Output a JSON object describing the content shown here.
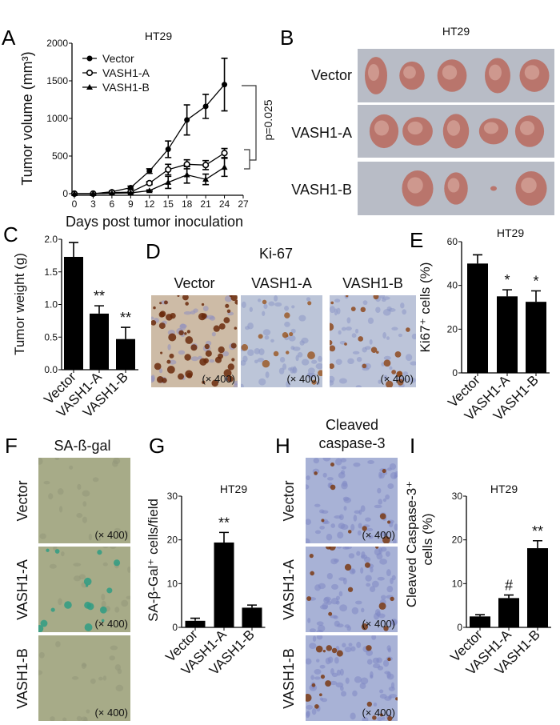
{
  "panel_letters": {
    "A": "A",
    "B": "B",
    "C": "C",
    "D": "D",
    "E": "E",
    "F": "F",
    "G": "G",
    "H": "H",
    "I": "I"
  },
  "panel_B": {
    "title": "HT29",
    "rows": [
      "Vector",
      "VASH1-A",
      "VASH1-B"
    ],
    "tumor_counts": [
      5,
      5,
      4
    ]
  },
  "panel_D": {
    "title": "Ki-67",
    "columns": [
      "Vector",
      "VASH1-A",
      "VASH1-B"
    ],
    "magnification": "(× 400)"
  },
  "panel_F": {
    "title": "SA-ß-gal",
    "rows": [
      "Vector",
      "VASH1-A",
      "VASH1-B"
    ],
    "magnification": "(× 400)"
  },
  "panel_H": {
    "title_line1": "Cleaved",
    "title_line2": "caspase-3",
    "rows": [
      "Vector",
      "VASH1-A",
      "VASH1-B"
    ],
    "magnification": "(× 400)"
  },
  "chart_data": [
    {
      "id": "A",
      "type": "line",
      "title": "HT29",
      "xlabel": "Days post tumor inoculation",
      "ylabel": "Tumor volume (mm³)",
      "xlim": [
        0,
        27
      ],
      "ylim": [
        0,
        2000
      ],
      "xticks": [
        0,
        3,
        6,
        9,
        12,
        15,
        18,
        21,
        24,
        27
      ],
      "yticks": [
        0,
        500,
        1000,
        1500,
        2000
      ],
      "x": [
        0,
        3,
        6,
        9,
        12,
        15,
        18,
        21,
        24
      ],
      "legend_position": "top-left",
      "series": [
        {
          "name": "Vector",
          "marker": "filled-circle",
          "values": [
            0,
            0,
            25,
            80,
            300,
            590,
            980,
            1160,
            1450
          ],
          "errors": [
            0,
            0,
            10,
            20,
            30,
            110,
            200,
            160,
            350
          ]
        },
        {
          "name": "VASH1-A",
          "marker": "open-circle",
          "values": [
            0,
            0,
            15,
            20,
            140,
            320,
            390,
            380,
            540
          ],
          "errors": [
            0,
            0,
            5,
            10,
            20,
            70,
            60,
            60,
            60
          ]
        },
        {
          "name": "VASH1-B",
          "marker": "triangle",
          "values": [
            0,
            0,
            5,
            10,
            40,
            150,
            250,
            190,
            350
          ],
          "errors": [
            0,
            0,
            3,
            5,
            10,
            80,
            110,
            70,
            120
          ]
        }
      ],
      "annotation": "p=0.025"
    },
    {
      "id": "C",
      "type": "bar",
      "title": "",
      "ylabel": "Tumor weight (g)",
      "ylim": [
        0,
        2.0
      ],
      "yticks": [
        "0.0",
        "0.5",
        "1.0",
        "1.5",
        "2.0"
      ],
      "categories": [
        "Vector",
        "VASH1-A",
        "VASH1-B"
      ],
      "values": [
        1.73,
        0.86,
        0.47
      ],
      "errors": [
        0.22,
        0.12,
        0.18
      ],
      "significance": [
        "",
        "**",
        "**"
      ]
    },
    {
      "id": "E",
      "type": "bar",
      "title": "HT29",
      "ylabel": "Ki67⁺ cells (%)",
      "ylim": [
        0,
        60
      ],
      "yticks": [
        "0",
        "20",
        "40",
        "60"
      ],
      "categories": [
        "Vector",
        "VASH1-A",
        "VASH1-B"
      ],
      "values": [
        50,
        35,
        32.5
      ],
      "errors": [
        4,
        3,
        5
      ],
      "significance": [
        "",
        "*",
        "*"
      ]
    },
    {
      "id": "G",
      "type": "bar",
      "title": "HT29",
      "ylabel": "SA-β-Gal⁺ cells/field",
      "ylim": [
        0,
        30
      ],
      "yticks": [
        "0",
        "10",
        "20",
        "30"
      ],
      "categories": [
        "Vector",
        "VASH1-A",
        "VASH1-B"
      ],
      "values": [
        1.5,
        19.4,
        4.5
      ],
      "errors": [
        0.6,
        2.3,
        0.6
      ],
      "significance": [
        "",
        "**",
        ""
      ]
    },
    {
      "id": "I",
      "type": "bar",
      "title": "HT29",
      "ylabel": "Cleaved Caspase-3⁺",
      "ylabel_line2": "cells (%)",
      "ylim": [
        0,
        30
      ],
      "yticks": [
        "0",
        "10",
        "20",
        "30"
      ],
      "categories": [
        "Vector",
        "VASH1-A",
        "VASH1-B"
      ],
      "values": [
        2.5,
        6.7,
        18.1
      ],
      "errors": [
        0.4,
        0.7,
        1.7
      ],
      "significance": [
        "",
        "#",
        "**"
      ]
    }
  ],
  "colors": {
    "bar": "#000000",
    "axis": "#000000",
    "photo_bg": "#b8bcc6",
    "tumor": "#b9756c",
    "ihc_blue": "#a8b2d6",
    "ihc_brown": "#7a3a14",
    "sagal_bg": "#a7ab88",
    "sagal_stain": "#2f9c84"
  }
}
